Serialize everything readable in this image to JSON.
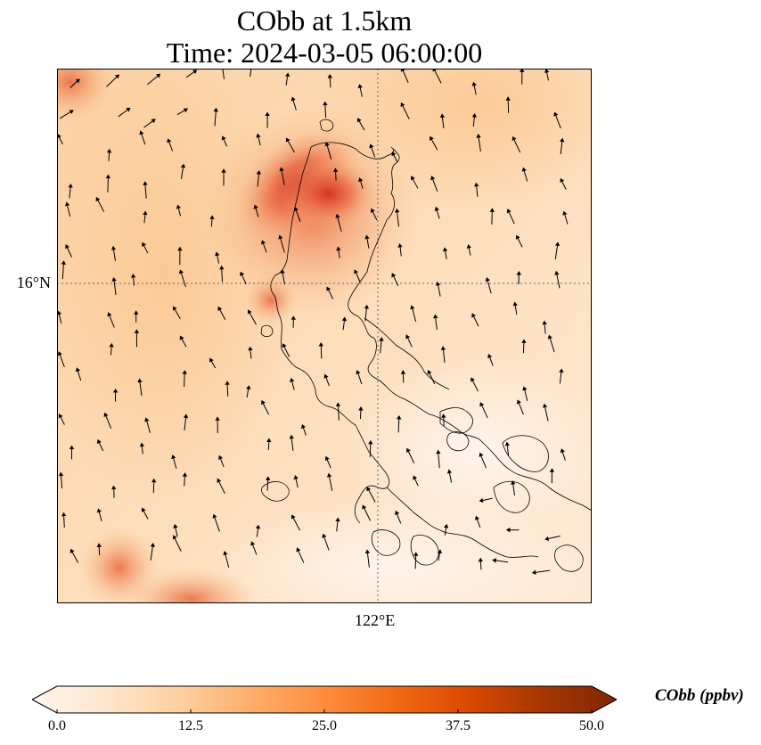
{
  "title_line1": "CObb at 1.5km",
  "title_line2": "Time: 2024-03-05 06:00:00",
  "lat_label": "16°N",
  "lon_label": "122°E",
  "colorbar": {
    "label": "CObb (ppbv)",
    "ticks": [
      "0.0",
      "12.5",
      "25.0",
      "37.5",
      "50.0"
    ],
    "min": 0,
    "max": 50,
    "colors": [
      "#fff5eb",
      "#fee6ce",
      "#fdd0a2",
      "#fdae6b",
      "#fd8d3c",
      "#f16913",
      "#d94801",
      "#a63603",
      "#7f2704"
    ]
  },
  "map": {
    "variable": "CObb",
    "height": "1.5km",
    "graticule_style": "dotted",
    "wind_vectors": true
  }
}
